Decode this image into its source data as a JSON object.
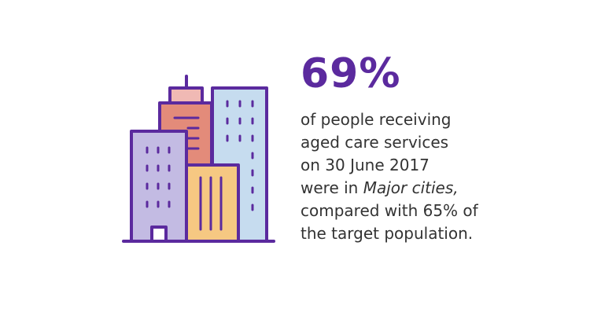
{
  "colors": {
    "accent": "#5b2a9e",
    "text": "#333333",
    "building_purple": "#c3bbe3",
    "building_salmon": "#e38b7a",
    "building_pink": "#f0b9b4",
    "building_blue": "#c6dcef",
    "building_yellow": "#f6c882"
  },
  "icon": "city-buildings-icon",
  "stat": {
    "value": "69%",
    "line1": "of people receiving",
    "line2": "aged care services",
    "line3": "on 30 June 2017",
    "line4_prefix": "were in ",
    "line4_italic": "Major cities,",
    "line5": "compared with 65% of",
    "line6": "the target population."
  }
}
